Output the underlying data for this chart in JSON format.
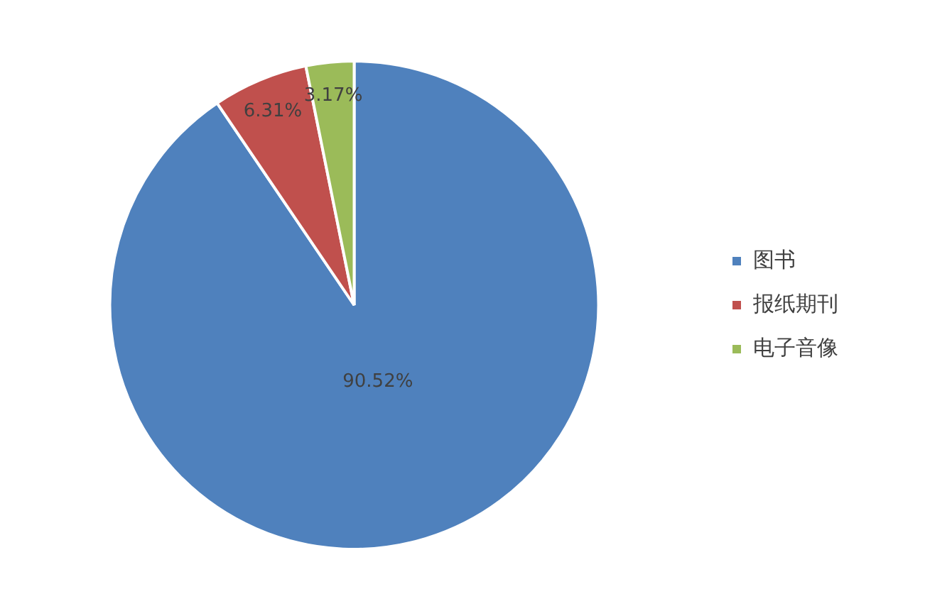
{
  "chart_data": {
    "type": "pie",
    "categories": [
      "图书",
      "报纸期刊",
      "电子音像"
    ],
    "values": [
      90.52,
      6.31,
      3.17
    ],
    "colors": [
      "#4f81bd",
      "#c0504d",
      "#9bbb59"
    ],
    "value_labels": [
      "90.52%",
      "6.31%",
      "3.17%"
    ],
    "legend": "right"
  }
}
